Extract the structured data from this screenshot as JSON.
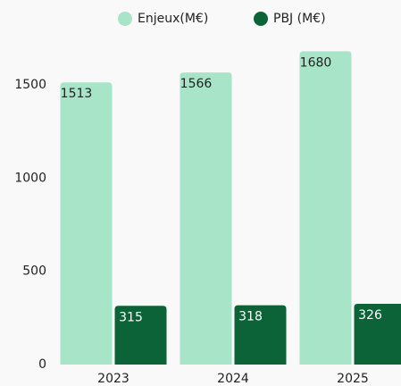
{
  "chart_data": {
    "type": "bar",
    "categories": [
      "2023",
      "2024",
      "2025"
    ],
    "series": [
      {
        "name": "Enjeux(M€)",
        "color": "#a8e4c8",
        "values": [
          1513,
          1566,
          1680
        ]
      },
      {
        "name": "PBJ (M€)",
        "color": "#0d6338",
        "values": [
          315,
          318,
          326
        ]
      }
    ],
    "ylim": [
      0,
      1800
    ],
    "yticks": [
      0,
      500,
      1000,
      1500
    ],
    "grid": false,
    "legend": "top"
  }
}
